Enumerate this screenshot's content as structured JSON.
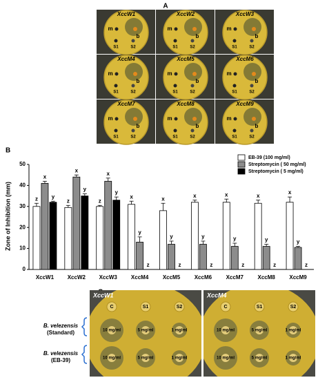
{
  "panel_a": {
    "label": "A",
    "plates": [
      "XccW1",
      "XccW2",
      "XccW3",
      "XccM4",
      "XccM5",
      "XccM6",
      "XccM7",
      "XccM8",
      "XccM9"
    ],
    "markers": [
      "m",
      "b",
      "S1",
      "S2"
    ]
  },
  "panel_b": {
    "label": "B"
  },
  "chart_data": {
    "type": "bar",
    "y_label": "Zone of Inhibition (mm)",
    "categories": [
      "XccW1",
      "XccW2",
      "XccW3",
      "XccM4",
      "XccM5",
      "XccM6",
      "XccM7",
      "XccM8",
      "XccM9"
    ],
    "series": [
      {
        "name": "EB-39 (100 mg/ml)",
        "color": "#ffffff",
        "values": [
          30,
          29.5,
          30,
          31,
          28,
          32,
          32,
          31.5,
          32
        ],
        "errors": [
          1.5,
          1,
          0.5,
          1.5,
          3.5,
          1,
          1.5,
          1.5,
          2.5
        ],
        "letters": [
          "z",
          "z",
          "z",
          "x",
          "x",
          "x",
          "x",
          "x",
          "x"
        ]
      },
      {
        "name": "Streptomycin ( 50 mg/ml)",
        "color": "#8c8c8c",
        "values": [
          41,
          44,
          42,
          13,
          12,
          12,
          11,
          11,
          10.5
        ],
        "errors": [
          1,
          1,
          1.5,
          2.5,
          1.5,
          1.5,
          1.5,
          1,
          0.5
        ],
        "letters": [
          "x",
          "x",
          "x",
          "y",
          "y",
          "y",
          "y",
          "y",
          "y"
        ]
      },
      {
        "name": "Streptomycin ( 5 mg/ml)",
        "color": "#000000",
        "values": [
          32,
          35,
          33,
          0,
          0,
          0,
          0,
          0,
          0
        ],
        "errors": [
          0.5,
          1,
          1.5,
          0,
          0,
          0,
          0,
          0,
          0
        ],
        "letters": [
          "y",
          "y",
          "y",
          "z",
          "z",
          "z",
          "z",
          "z",
          "z"
        ]
      }
    ],
    "ylim": [
      0,
      50
    ],
    "yticks": [
      0,
      10,
      20,
      30,
      40,
      50
    ],
    "grid": false
  },
  "panel_c": {
    "label": "C",
    "plates": [
      "XccW1",
      "XccM4"
    ],
    "wells": [
      "C",
      "S1",
      "S2"
    ],
    "concentrations": [
      "10 mg/ml",
      "5 mg/ml",
      "1 mg/ml"
    ],
    "rows": [
      {
        "name": "B. velezensis",
        "detail": "(Standard)"
      },
      {
        "name": "B. velezensis",
        "detail": "(EB-39)"
      }
    ]
  }
}
